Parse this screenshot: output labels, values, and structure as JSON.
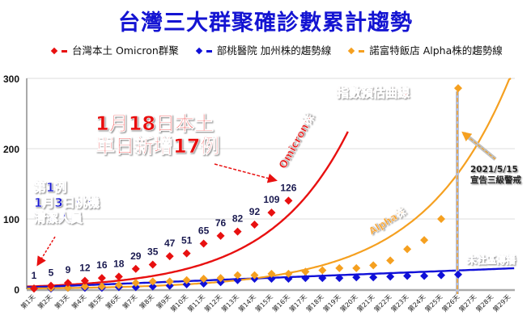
{
  "title": "台灣三大群聚確診數累計趨勢",
  "legend": [
    {
      "label": "台灣本土 Omicron群聚",
      "color": "#e81010"
    },
    {
      "label": "部桃醫院 加州株的趨勢線",
      "color": "#1010d8"
    },
    {
      "label": "諾富特飯店 Alpha株的趨勢線",
      "color": "#f5a020"
    }
  ],
  "annotations": {
    "first_case": [
      "第1例",
      "1月3日桃機",
      "清潔人員"
    ],
    "jan18": [
      "1月18日本土",
      "單日新增17例"
    ],
    "exp_curve": "指數預估曲線",
    "omicron_label": "Omicron株",
    "alpha_label": "Alpha株",
    "no_community": "未社區傳播",
    "alert": [
      "2021/5/15",
      "宣告三級警戒"
    ]
  },
  "chart_data": {
    "type": "line",
    "title": "台灣三大群聚確診數累計趨勢",
    "xlabel": "",
    "ylabel": "",
    "ylim": [
      0,
      300
    ],
    "yticks": [
      0,
      100,
      200,
      300
    ],
    "grid": true,
    "legend_position": "top",
    "categories": [
      "第1天",
      "第2天",
      "第3天",
      "第4天",
      "第5天",
      "第6天",
      "第7天",
      "第8天",
      "第9天",
      "第10天",
      "第11天",
      "第12天",
      "第13天",
      "第14天",
      "第15天",
      "第16天",
      "第17天",
      "第18天",
      "第19天",
      "第20天",
      "第21天",
      "第22天",
      "第23天",
      "第24天",
      "第25天",
      "第26天",
      "第27天",
      "第28天",
      "第29天"
    ],
    "series": [
      {
        "name": "台灣本土 Omicron群聚",
        "color": "#e81010",
        "values": [
          1,
          5,
          9,
          12,
          16,
          18,
          29,
          35,
          47,
          51,
          65,
          76,
          82,
          92,
          109,
          126,
          null,
          null,
          null,
          null,
          null,
          null,
          null,
          null,
          null,
          null,
          null,
          null,
          null
        ],
        "show_labels": true
      },
      {
        "name": "部桃醫院 加州株",
        "color": "#1010d8",
        "values": [
          1,
          1,
          2,
          2,
          2,
          3,
          3,
          4,
          5,
          7,
          8,
          10,
          13,
          15,
          15,
          15,
          16,
          16,
          16,
          17,
          17,
          18,
          19,
          19,
          20,
          21,
          null,
          null,
          null
        ],
        "show_labels": false
      },
      {
        "name": "諾富特飯店 Alpha株",
        "color": "#f5a020",
        "values": [
          1,
          2,
          2,
          4,
          4,
          6,
          9,
          11,
          11,
          13,
          15,
          16,
          20,
          20,
          22,
          22,
          25,
          27,
          30,
          30,
          34,
          41,
          57,
          70,
          100,
          286,
          null,
          null,
          null
        ],
        "show_labels": false
      }
    ],
    "trendlines": [
      {
        "name": "Omicron株 指數預估曲線",
        "color": "#e81010",
        "type": "exponential"
      },
      {
        "name": "未社區傳播 加州株趨勢線",
        "color": "#1010d8",
        "type": "linear"
      },
      {
        "name": "Alpha株 趨勢線",
        "color": "#f5a020",
        "type": "exponential"
      }
    ],
    "vertical_marker": {
      "x": "第26天",
      "label": "2021/5/15 宣告三級警戒"
    }
  }
}
